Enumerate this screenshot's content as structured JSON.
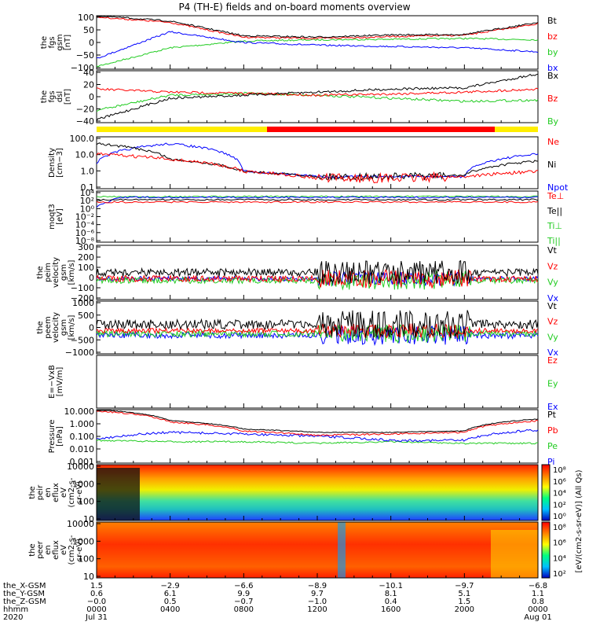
{
  "title": "P4 (TH-E) fields and on-board moments overview",
  "colors": {
    "black": "#000000",
    "red": "#ff0000",
    "green": "#22cc22",
    "blue": "#0000ff",
    "yellow": "#ffee00"
  },
  "panels": [
    {
      "id": "fgs-gsm",
      "label": [
        "the",
        "fgs",
        "gsm",
        "[nT]"
      ],
      "yticks": [
        "100",
        "50",
        "0",
        "−50",
        "−100"
      ],
      "legend": [
        {
          "text": "Bt",
          "color": "black"
        },
        {
          "text": "bz",
          "color": "red"
        },
        {
          "text": "by",
          "color": "green"
        },
        {
          "text": "bx",
          "color": "blue"
        }
      ]
    },
    {
      "id": "fgs-dsl",
      "label": [
        "the",
        "fgs",
        "dsl",
        "[nT]"
      ],
      "yticks": [
        "40",
        "20",
        "0",
        "−20",
        "−40"
      ],
      "legend": [
        {
          "text": "Bx",
          "color": "black"
        },
        {
          "text": "Bz",
          "color": "red"
        },
        {
          "text": "By",
          "color": "green"
        }
      ]
    },
    {
      "id": "density",
      "label": [
        "Density",
        "[cm−3]"
      ],
      "yticks": [
        "100.0",
        "10.0",
        "1.0",
        "0.1"
      ],
      "legend": [
        {
          "text": "Ne",
          "color": "red"
        },
        {
          "text": "Ni",
          "color": "black"
        },
        {
          "text": "Npot",
          "color": "blue"
        }
      ]
    },
    {
      "id": "temperature",
      "label": [
        "moqt3",
        "[eV]"
      ],
      "yticks": [
        "10⁴",
        "10²",
        "10⁰",
        "10⁻²",
        "10⁻⁴",
        "10⁻⁶",
        "10⁻⁸"
      ],
      "legend": [
        {
          "text": "Te⊥",
          "color": "red"
        },
        {
          "text": "Te||",
          "color": "black"
        },
        {
          "text": "Ti⊥",
          "color": "green"
        },
        {
          "text": "Ti||",
          "color": "green"
        }
      ]
    },
    {
      "id": "ion-velocity",
      "label": [
        "the",
        "peim",
        "velocity",
        "gsm",
        "[km/s]"
      ],
      "yticks": [
        "300",
        "200",
        "100",
        "0",
        "−100",
        "−200"
      ],
      "legend": [
        {
          "text": "Vt",
          "color": "black"
        },
        {
          "text": "Vz",
          "color": "red"
        },
        {
          "text": "Vy",
          "color": "green"
        },
        {
          "text": "Vx",
          "color": "blue"
        }
      ]
    },
    {
      "id": "electron-velocity",
      "label": [
        "the",
        "peem",
        "velocity",
        "gsm",
        "[km/s]"
      ],
      "yticks": [
        "1000",
        "500",
        "0",
        "−500",
        "−1000"
      ],
      "legend": [
        {
          "text": "Vt",
          "color": "black"
        },
        {
          "text": "Vz",
          "color": "red"
        },
        {
          "text": "Vy",
          "color": "green"
        },
        {
          "text": "Vx",
          "color": "blue"
        }
      ]
    },
    {
      "id": "efield",
      "label": [
        "E=−VxB",
        "[mV/m]"
      ],
      "yticks": [],
      "legend": [
        {
          "text": "Ez",
          "color": "red"
        },
        {
          "text": "Ey",
          "color": "green"
        },
        {
          "text": "Ex",
          "color": "blue"
        }
      ]
    },
    {
      "id": "pressure",
      "label": [
        "Pressure",
        "[nPa]"
      ],
      "yticks": [
        "10.000",
        "1.000",
        "0.100",
        "0.010",
        "0.001"
      ],
      "legend": [
        {
          "text": "Pt",
          "color": "black"
        },
        {
          "text": "Pb",
          "color": "red"
        },
        {
          "text": "Pe",
          "color": "green"
        },
        {
          "text": "Pi",
          "color": "blue"
        }
      ]
    },
    {
      "id": "ion-spec",
      "label": [
        "the",
        "peir",
        "en",
        "eflux",
        "eV",
        "(cm2-s-",
        "sr-eV)"
      ],
      "yticks": [
        "10000",
        "1000",
        "100",
        "10"
      ],
      "legend": []
    },
    {
      "id": "electron-spec",
      "label": [
        "the",
        "peer",
        "en",
        "eflux",
        "eV",
        "(cm2-s-",
        "sr-eV)"
      ],
      "yticks": [
        "10000",
        "1000",
        "100",
        "10"
      ],
      "legend": []
    }
  ],
  "colorbar": {
    "ion_ticks": [
      "10⁸",
      "10⁶",
      "10⁴",
      "10²",
      "10⁰"
    ],
    "electron_ticks": [
      "10⁸",
      "10⁶",
      "10⁴",
      "10²"
    ],
    "label": "[eV/(cm2-s-sr-eV)] (All Qs)"
  },
  "xaxis": {
    "row_labels": [
      "the_X-GSM",
      "the_Y-GSM",
      "the_Z-GSM",
      "hhmm",
      "2020"
    ],
    "columns": [
      [
        "1.5",
        "0.6",
        "−0.0",
        "0000",
        "Jul 31"
      ],
      [
        "−2.9",
        "6.1",
        "0.5",
        "0400",
        ""
      ],
      [
        "−6.6",
        "9.9",
        "−0.7",
        "0800",
        ""
      ],
      [
        "−8.9",
        "9.7",
        "−1.0",
        "1200",
        ""
      ],
      [
        "−10.1",
        "8.1",
        "0.4",
        "1600",
        ""
      ],
      [
        "−9.7",
        "5.1",
        "1.5",
        "2000",
        ""
      ],
      [
        "−6.8",
        "1.1",
        "0.8",
        "0000",
        "Aug 01"
      ]
    ]
  },
  "chart_data": {
    "type": "line",
    "title": "P4 (TH-E) fields and on-board moments overview",
    "x": [
      "0000",
      "0400",
      "0800",
      "1200",
      "1600",
      "2000",
      "0000"
    ],
    "panels": [
      {
        "panel": "fgs-gsm",
        "ylim": [
          -100,
          100
        ],
        "series": [
          {
            "name": "Bt",
            "values": [
              100,
              80,
              25,
              20,
              28,
              30,
              75
            ]
          },
          {
            "name": "bz",
            "values": [
              95,
              75,
              20,
              15,
              22,
              27,
              70
            ]
          },
          {
            "name": "by",
            "values": [
              -90,
              -20,
              5,
              10,
              12,
              15,
              10
            ]
          },
          {
            "name": "bx",
            "values": [
              -60,
              40,
              0,
              -10,
              -15,
              -20,
              -35
            ]
          }
        ]
      },
      {
        "panel": "fgs-dsl",
        "ylim": [
          -45,
          40
        ],
        "series": [
          {
            "name": "Bx",
            "values": [
              -40,
              -5,
              0,
              5,
              10,
              12,
              35
            ]
          },
          {
            "name": "Bz",
            "values": [
              10,
              5,
              3,
              0,
              2,
              5,
              10
            ]
          },
          {
            "name": "By",
            "values": [
              -25,
              0,
              3,
              0,
              -5,
              -10,
              -8
            ]
          }
        ]
      },
      {
        "panel": "density",
        "ylim": [
          0.1,
          100
        ],
        "log": true,
        "series": [
          {
            "name": "Ne",
            "values": [
              10,
              5,
              1,
              0.4,
              0.4,
              0.5,
              1
            ]
          },
          {
            "name": "Ni",
            "values": [
              40,
              5,
              1,
              0.5,
              0.5,
              0.6,
              4
            ]
          },
          {
            "name": "Npot",
            "values": [
              3,
              40,
              1,
              0.5,
              0.5,
              0.5,
              10
            ]
          }
        ]
      },
      {
        "panel": "pressure",
        "ylim": [
          0.001,
          10
        ],
        "log": true,
        "series": [
          {
            "name": "Pt",
            "values": [
              10,
              1.5,
              0.35,
              0.2,
              0.2,
              0.25,
              2
            ]
          },
          {
            "name": "Pb",
            "values": [
              8,
              1.2,
              0.25,
              0.12,
              0.15,
              0.2,
              1.5
            ]
          },
          {
            "name": "Pe",
            "values": [
              0.05,
              0.04,
              0.04,
              0.03,
              0.04,
              0.03,
              0.03
            ]
          },
          {
            "name": "Pi",
            "values": [
              0.06,
              0.2,
              0.15,
              0.1,
              0.05,
              0.05,
              0.3
            ]
          }
        ]
      }
    ]
  }
}
